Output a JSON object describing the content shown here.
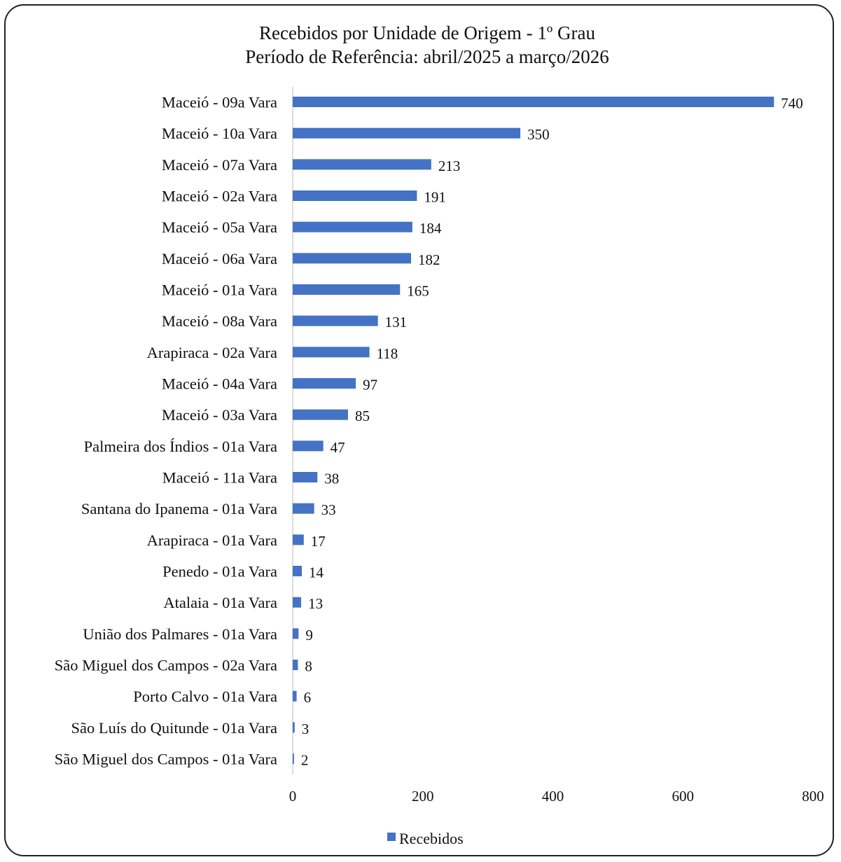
{
  "chart_data": {
    "type": "bar",
    "orientation": "horizontal",
    "title": "Recebidos por Unidade de Origem - 1º Grau",
    "subtitle": "Período de Referência: abril/2025 a março/2026",
    "categories": [
      "Maceió - 09a Vara",
      "Maceió - 10a Vara",
      "Maceió - 07a Vara",
      "Maceió - 02a Vara",
      "Maceió - 05a Vara",
      "Maceió - 06a Vara",
      "Maceió - 01a Vara",
      "Maceió - 08a Vara",
      "Arapiraca - 02a Vara",
      "Maceió - 04a Vara",
      "Maceió - 03a Vara",
      "Palmeira dos Índios - 01a Vara",
      "Maceió - 11a Vara",
      "Santana do Ipanema - 01a Vara",
      "Arapiraca - 01a Vara",
      "Penedo - 01a Vara",
      "Atalaia - 01a Vara",
      "União dos Palmares - 01a Vara",
      "São Miguel dos Campos - 02a Vara",
      "Porto Calvo - 01a Vara",
      "São Luís do Quitunde - 01a Vara",
      "São Miguel dos Campos - 01a Vara"
    ],
    "series": [
      {
        "name": "Recebidos",
        "color": "#4472C4",
        "values": [
          740,
          350,
          213,
          191,
          184,
          182,
          165,
          131,
          118,
          97,
          85,
          47,
          38,
          33,
          17,
          14,
          13,
          9,
          8,
          6,
          3,
          2
        ]
      }
    ],
    "xlim": [
      0,
      800
    ],
    "xticks": [
      0,
      200,
      400,
      600,
      800
    ],
    "grid": false,
    "legend": "bottom",
    "data_labels": true
  }
}
